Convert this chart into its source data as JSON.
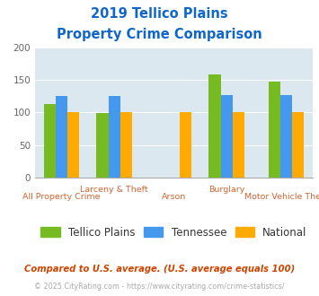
{
  "title_line1": "2019 Tellico Plains",
  "title_line2": "Property Crime Comparison",
  "categories": [
    "All Property Crime",
    "Larceny & Theft",
    "Arson",
    "Burglary",
    "Motor Vehicle Theft"
  ],
  "series": {
    "Tellico Plains": [
      113,
      99,
      0,
      159,
      148
    ],
    "Tennessee": [
      125,
      125,
      0,
      127,
      127
    ],
    "National": [
      100,
      100,
      100,
      100,
      100
    ]
  },
  "colors": {
    "Tellico Plains": "#77bb22",
    "Tennessee": "#4499ee",
    "National": "#ffaa00"
  },
  "ylim": [
    0,
    200
  ],
  "yticks": [
    0,
    50,
    100,
    150,
    200
  ],
  "background_color": "#dce8f0",
  "fig_bg": "#ffffff",
  "title_color": "#1166cc",
  "cat_label_color": "#cc6633",
  "legend_fontsize": 8.5,
  "footnote1": "Compared to U.S. average. (U.S. average equals 100)",
  "footnote2": "© 2025 CityRating.com - https://www.cityrating.com/crime-statistics/",
  "footnote1_color": "#cc4400",
  "footnote2_color": "#aaaaaa",
  "bar_width": 0.18,
  "group_x": [
    0.3,
    1.1,
    2.0,
    2.8,
    3.7
  ],
  "cat_top_labels": {
    "1": "Larceny & Theft",
    "3": "Burglary"
  },
  "cat_bottom_labels": {
    "0": "All Property Crime",
    "2": "Arson",
    "4": "Motor Vehicle Theft"
  }
}
